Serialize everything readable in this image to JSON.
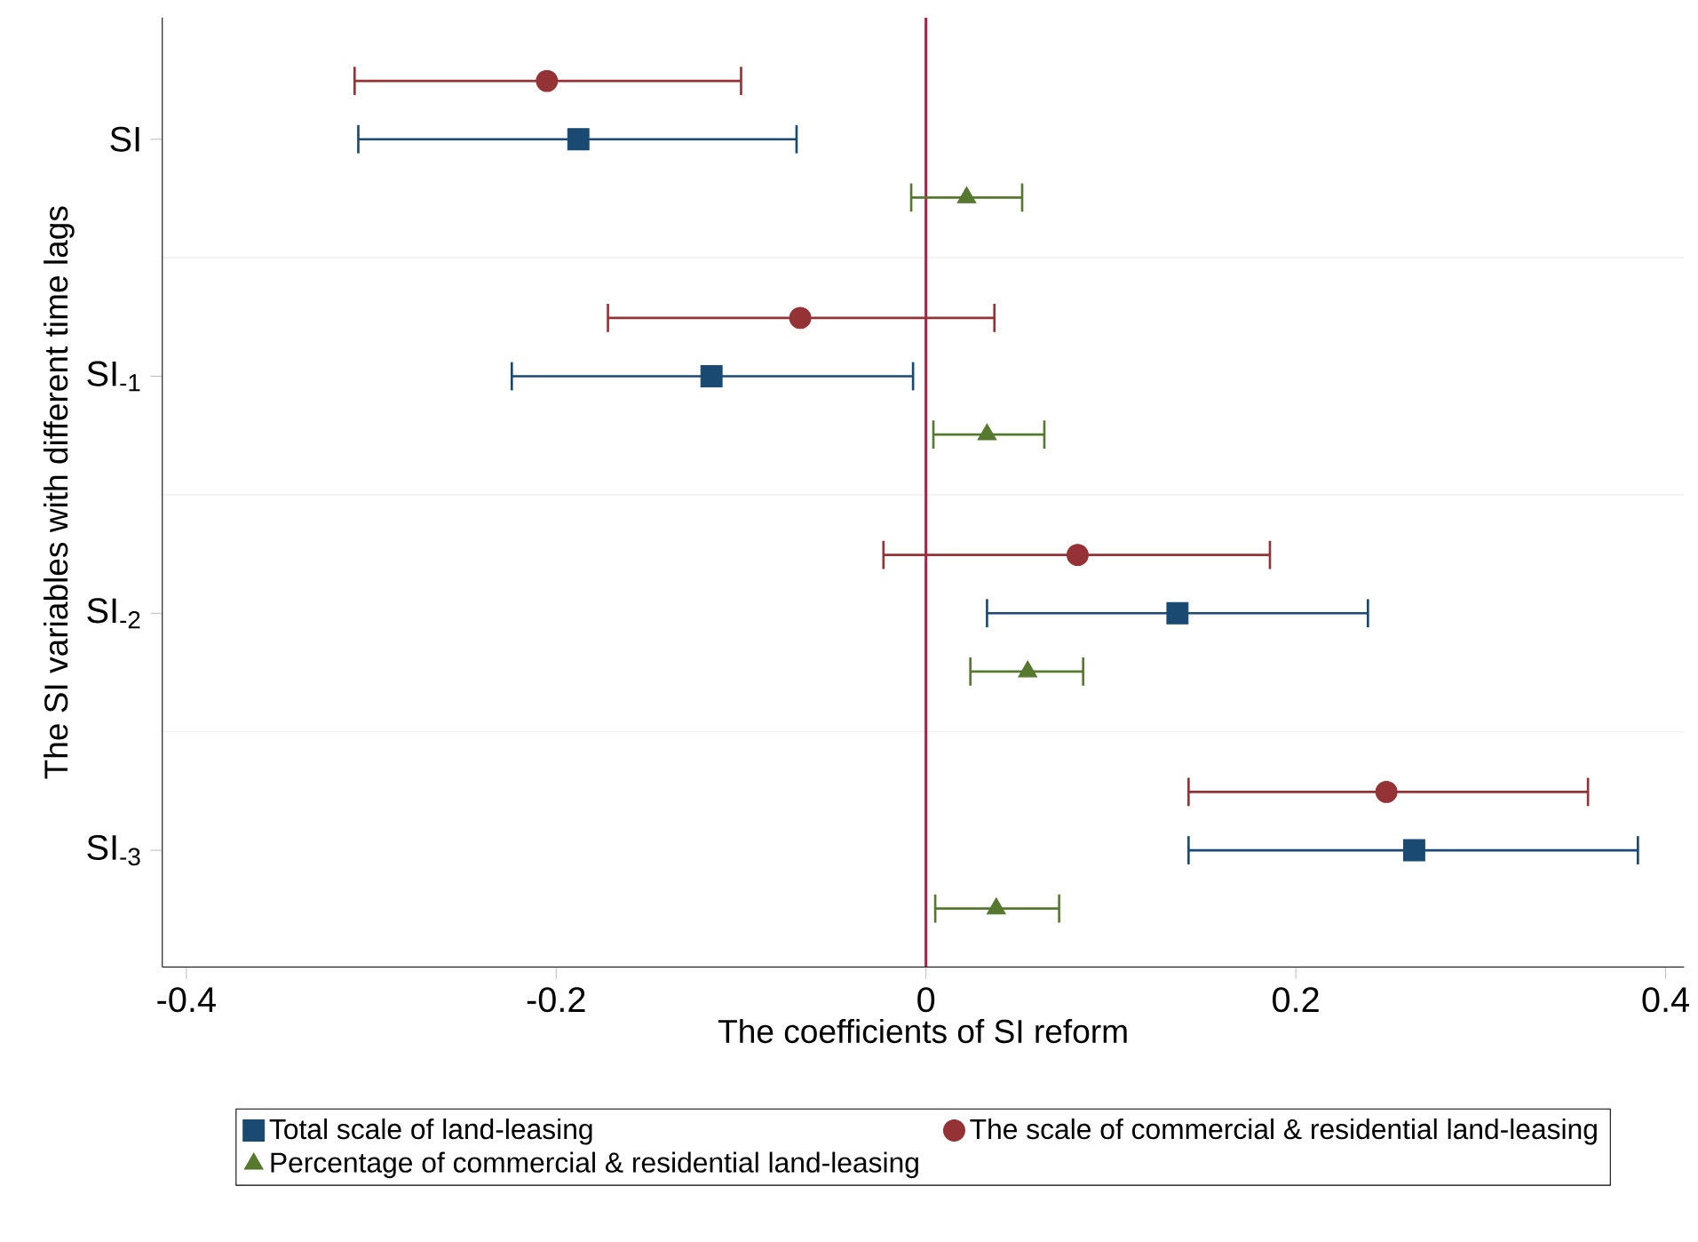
{
  "chart_data": {
    "type": "scatter",
    "orientation": "horizontal",
    "xlabel": "The coefficients of SI reform",
    "ylabel": "The SI variables with different time lags",
    "categories": [
      "SI",
      "SI$_{-1}$",
      "SI$_{-2}$",
      "SI$_{-3}$"
    ],
    "xlim": [
      -0.413,
      0.41
    ],
    "xticks": [
      -0.4,
      -0.2,
      0,
      0.2,
      0.4
    ],
    "grid": "y",
    "legend": "bottom",
    "ref_lines": [
      {
        "axis": "x",
        "value": 0,
        "color": "#b0204a"
      }
    ],
    "series": [
      {
        "name": "Total scale of land-leasing",
        "color": "#1a4a72",
        "marker": "square",
        "values": [
          -0.188,
          -0.116,
          0.136,
          0.264
        ],
        "errors": [
          [
            -0.307,
            -0.07
          ],
          [
            -0.224,
            -0.007
          ],
          [
            0.033,
            0.239
          ],
          [
            0.142,
            0.385
          ]
        ]
      },
      {
        "name": "The scale of commercial & residential land-leasing",
        "color": "#943236",
        "marker": "circle",
        "values": [
          -0.205,
          -0.068,
          0.082,
          0.249
        ],
        "errors": [
          [
            -0.309,
            -0.1
          ],
          [
            -0.172,
            0.037
          ],
          [
            -0.023,
            0.186
          ],
          [
            0.142,
            0.358
          ]
        ]
      },
      {
        "name": "Percentage of commercial & residential land-leasing",
        "color": "#56782f",
        "marker": "triangle",
        "values": [
          0.022,
          0.033,
          0.055,
          0.038
        ],
        "errors": [
          [
            -0.008,
            0.052
          ],
          [
            0.004,
            0.064
          ],
          [
            0.024,
            0.085
          ],
          [
            0.005,
            0.072
          ]
        ]
      }
    ]
  }
}
